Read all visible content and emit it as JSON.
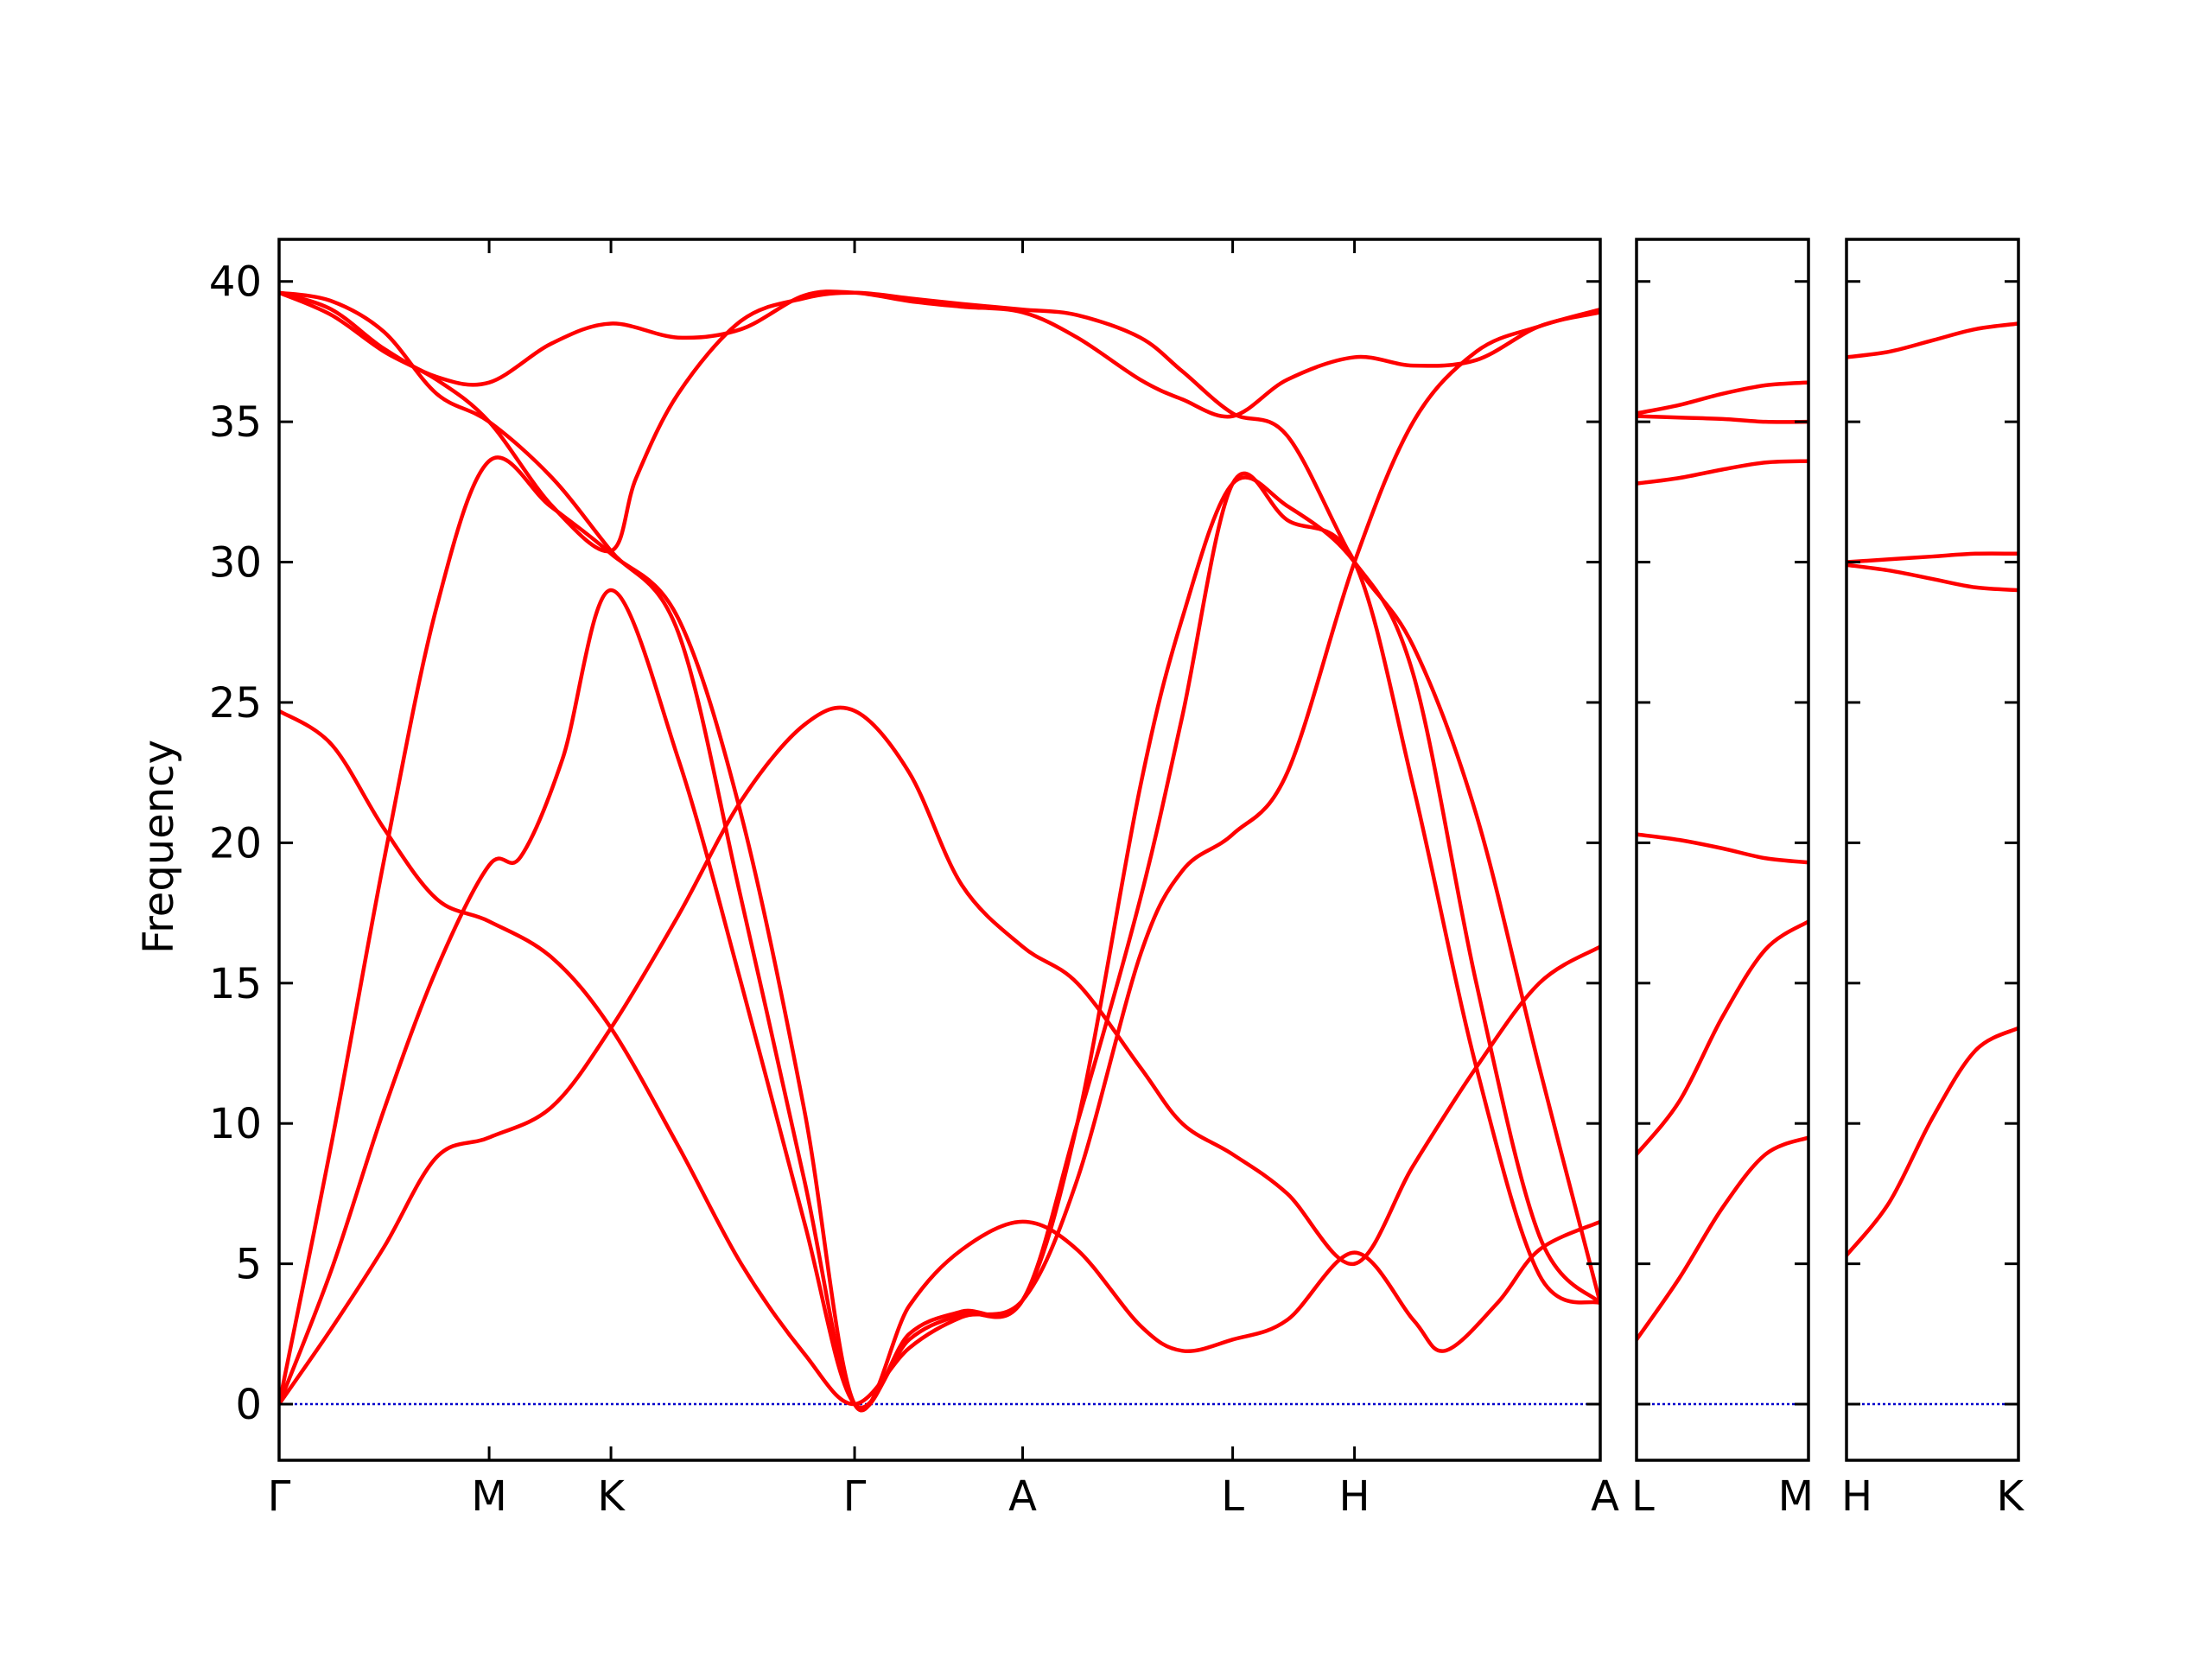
{
  "chart_data": {
    "type": "line",
    "ylabel": "Frequency",
    "ylim": [
      -2,
      41.5
    ],
    "yticks": [
      0,
      5,
      10,
      15,
      20,
      25,
      30,
      35,
      40
    ],
    "colors": {
      "band": "#ff0000",
      "zero_line": "#0000cc",
      "axes": "#000000"
    },
    "panels": [
      {
        "id": "panel-1",
        "xlim": [
          0,
          6.29
        ],
        "xticks": [
          {
            "x": 0,
            "label": "Γ"
          },
          {
            "x": 1.0,
            "label": "M"
          },
          {
            "x": 1.58,
            "label": "K"
          },
          {
            "x": 2.74,
            "label": "Γ"
          },
          {
            "x": 3.54,
            "label": "A"
          },
          {
            "x": 4.54,
            "label": "L"
          },
          {
            "x": 5.12,
            "label": "H"
          },
          {
            "x": 6.29,
            "label": "A"
          }
        ],
        "series": [
          {
            "points": [
              [
                0,
                0
              ],
              [
                0.25,
                9.3
              ],
              [
                0.5,
                19.4
              ],
              [
                0.75,
                28.4
              ],
              [
                1.0,
                33.6
              ],
              [
                1.29,
                32.0
              ],
              [
                1.58,
                30.3
              ],
              [
                1.9,
                28.0
              ],
              [
                2.2,
                21.0
              ],
              [
                2.5,
                10.5
              ],
              [
                2.74,
                0
              ],
              [
                3.0,
                3.5
              ],
              [
                3.25,
                5.5
              ],
              [
                3.54,
                6.5
              ],
              [
                3.8,
                5.5
              ],
              [
                4.1,
                2.8
              ],
              [
                4.3,
                1.9
              ],
              [
                4.54,
                2.3
              ],
              [
                4.8,
                3.0
              ],
              [
                5.12,
                5.4
              ],
              [
                5.4,
                3.0
              ],
              [
                5.55,
                1.9
              ],
              [
                5.8,
                3.6
              ],
              [
                6.0,
                5.5
              ],
              [
                6.29,
                6.5
              ]
            ]
          },
          {
            "points": [
              [
                0,
                0
              ],
              [
                0.25,
                4.8
              ],
              [
                0.5,
                10.5
              ],
              [
                0.75,
                15.5
              ],
              [
                1.0,
                19.2
              ],
              [
                1.15,
                19.5
              ],
              [
                1.35,
                23.0
              ],
              [
                1.58,
                29.0
              ],
              [
                1.9,
                23.0
              ],
              [
                2.2,
                15.0
              ],
              [
                2.5,
                6.5
              ],
              [
                2.74,
                0
              ],
              [
                3.0,
                2.3
              ],
              [
                3.25,
                3.2
              ],
              [
                3.54,
                3.7
              ],
              [
                3.8,
                10.0
              ],
              [
                4.1,
                18.0
              ],
              [
                4.3,
                24.5
              ],
              [
                4.54,
                32.8
              ],
              [
                4.8,
                31.5
              ],
              [
                5.12,
                30.0
              ],
              [
                5.4,
                22.0
              ],
              [
                5.7,
                12.0
              ],
              [
                6.0,
                4.6
              ],
              [
                6.29,
                3.6
              ]
            ]
          },
          {
            "points": [
              [
                0,
                0
              ],
              [
                0.25,
                2.7
              ],
              [
                0.5,
                5.6
              ],
              [
                0.75,
                8.8
              ],
              [
                1.0,
                9.5
              ],
              [
                1.3,
                10.6
              ],
              [
                1.58,
                13.4
              ],
              [
                1.9,
                17.4
              ],
              [
                2.2,
                21.5
              ],
              [
                2.5,
                24.2
              ],
              [
                2.74,
                24.7
              ],
              [
                3.0,
                22.5
              ],
              [
                3.25,
                18.5
              ],
              [
                3.54,
                16.3
              ],
              [
                3.8,
                15.0
              ],
              [
                4.1,
                12.0
              ],
              [
                4.3,
                10.0
              ],
              [
                4.54,
                8.9
              ],
              [
                4.8,
                7.5
              ],
              [
                5.12,
                5.0
              ],
              [
                5.4,
                8.5
              ],
              [
                5.7,
                12.0
              ],
              [
                6.0,
                15.0
              ],
              [
                6.29,
                16.3
              ]
            ]
          },
          {
            "points": [
              [
                0,
                24.7
              ],
              [
                0.25,
                23.5
              ],
              [
                0.5,
                20.5
              ],
              [
                0.75,
                18.0
              ],
              [
                1.0,
                17.2
              ],
              [
                1.3,
                15.9
              ],
              [
                1.58,
                13.4
              ],
              [
                1.9,
                9.2
              ],
              [
                2.2,
                5.0
              ],
              [
                2.5,
                1.8
              ],
              [
                2.74,
                0
              ],
              [
                3.0,
                2.0
              ],
              [
                3.25,
                3.1
              ],
              [
                3.54,
                3.7
              ],
              [
                3.8,
                8.0
              ],
              [
                4.1,
                16.0
              ],
              [
                4.3,
                19.0
              ],
              [
                4.54,
                20.3
              ],
              [
                4.8,
                22.5
              ],
              [
                5.12,
                30.0
              ],
              [
                5.4,
                35.0
              ],
              [
                5.7,
                37.5
              ],
              [
                6.0,
                38.4
              ],
              [
                6.29,
                39.0
              ]
            ]
          },
          {
            "points": [
              [
                0,
                39.6
              ],
              [
                0.25,
                39.3
              ],
              [
                0.5,
                38.2
              ],
              [
                0.75,
                36.0
              ],
              [
                1.0,
                35.0
              ],
              [
                1.3,
                33.0
              ],
              [
                1.58,
                30.4
              ],
              [
                1.9,
                27.5
              ],
              [
                2.2,
                18.0
              ],
              [
                2.5,
                8.0
              ],
              [
                2.74,
                0
              ],
              [
                3.0,
                2.5
              ],
              [
                3.25,
                3.3
              ],
              [
                3.54,
                3.7
              ],
              [
                3.8,
                10.0
              ],
              [
                4.1,
                22.0
              ],
              [
                4.3,
                28.0
              ],
              [
                4.54,
                32.8
              ],
              [
                4.8,
                32.0
              ],
              [
                5.12,
                30.0
              ],
              [
                5.4,
                26.0
              ],
              [
                5.7,
                15.0
              ],
              [
                6.0,
                6.0
              ],
              [
                6.29,
                3.6
              ]
            ]
          },
          {
            "points": [
              [
                0,
                39.6
              ],
              [
                0.25,
                39.0
              ],
              [
                0.5,
                37.6
              ],
              [
                0.75,
                36.6
              ],
              [
                1.0,
                36.4
              ],
              [
                1.3,
                37.8
              ],
              [
                1.58,
                38.5
              ],
              [
                1.9,
                38.0
              ],
              [
                2.2,
                38.3
              ],
              [
                2.5,
                39.5
              ],
              [
                2.74,
                39.6
              ],
              [
                3.0,
                39.3
              ],
              [
                3.25,
                39.1
              ],
              [
                3.54,
                38.9
              ],
              [
                3.8,
                38.0
              ],
              [
                4.1,
                36.5
              ],
              [
                4.3,
                35.8
              ],
              [
                4.54,
                35.2
              ],
              [
                4.8,
                36.5
              ],
              [
                5.12,
                37.3
              ],
              [
                5.4,
                37.0
              ],
              [
                5.7,
                37.2
              ],
              [
                6.0,
                38.4
              ],
              [
                6.29,
                38.9
              ]
            ]
          },
          {
            "points": [
              [
                0,
                39.6
              ],
              [
                0.25,
                38.8
              ],
              [
                0.5,
                37.5
              ],
              [
                0.75,
                36.5
              ],
              [
                1.0,
                35.0
              ],
              [
                1.3,
                32.0
              ],
              [
                1.58,
                30.4
              ],
              [
                1.7,
                33.0
              ],
              [
                1.9,
                36.0
              ],
              [
                2.2,
                38.6
              ],
              [
                2.5,
                39.4
              ],
              [
                2.74,
                39.6
              ],
              [
                3.0,
                39.4
              ],
              [
                3.25,
                39.2
              ],
              [
                3.54,
                39.0
              ],
              [
                3.8,
                38.8
              ],
              [
                4.1,
                38.0
              ],
              [
                4.3,
                36.8
              ],
              [
                4.54,
                35.3
              ],
              [
                4.8,
                34.5
              ],
              [
                5.12,
                30.0
              ],
              [
                5.4,
                27.0
              ],
              [
                5.7,
                21.0
              ],
              [
                6.0,
                12.0
              ],
              [
                6.29,
                3.6
              ]
            ]
          }
        ]
      },
      {
        "id": "panel-2",
        "xlim": [
          0,
          1
        ],
        "xticks": [
          {
            "x": 0,
            "label": "L"
          },
          {
            "x": 1,
            "label": "M"
          }
        ],
        "series": [
          {
            "points": [
              [
                0,
                2.3
              ],
              [
                0.25,
                4.5
              ],
              [
                0.5,
                7.0
              ],
              [
                0.75,
                8.9
              ],
              [
                1,
                9.5
              ]
            ]
          },
          {
            "points": [
              [
                0,
                8.9
              ],
              [
                0.25,
                10.8
              ],
              [
                0.5,
                13.8
              ],
              [
                0.75,
                16.2
              ],
              [
                1,
                17.2
              ]
            ]
          },
          {
            "points": [
              [
                0,
                20.3
              ],
              [
                0.25,
                20.1
              ],
              [
                0.5,
                19.8
              ],
              [
                0.75,
                19.45
              ],
              [
                1,
                19.3
              ]
            ]
          },
          {
            "points": [
              [
                0,
                32.8
              ],
              [
                0.25,
                33.0
              ],
              [
                0.5,
                33.3
              ],
              [
                0.75,
                33.55
              ],
              [
                1,
                33.6
              ]
            ]
          },
          {
            "points": [
              [
                0,
                35.2
              ],
              [
                0.25,
                35.15
              ],
              [
                0.5,
                35.1
              ],
              [
                0.75,
                35.0
              ],
              [
                1,
                35.0
              ]
            ]
          },
          {
            "points": [
              [
                0,
                35.3
              ],
              [
                0.25,
                35.6
              ],
              [
                0.5,
                36.0
              ],
              [
                0.75,
                36.3
              ],
              [
                1,
                36.4
              ]
            ]
          }
        ]
      },
      {
        "id": "panel-3",
        "xlim": [
          0,
          1
        ],
        "xticks": [
          {
            "x": 0,
            "label": "H"
          },
          {
            "x": 1,
            "label": "K"
          }
        ],
        "series": [
          {
            "points": [
              [
                0,
                5.3
              ],
              [
                0.25,
                7.2
              ],
              [
                0.5,
                10.2
              ],
              [
                0.75,
                12.6
              ],
              [
                1,
                13.4
              ]
            ]
          },
          {
            "points": [
              [
                0,
                29.9
              ],
              [
                0.25,
                29.7
              ],
              [
                0.5,
                29.4
              ],
              [
                0.75,
                29.1
              ],
              [
                1,
                29.0
              ]
            ]
          },
          {
            "points": [
              [
                0,
                30.0
              ],
              [
                0.25,
                30.1
              ],
              [
                0.5,
                30.2
              ],
              [
                0.75,
                30.3
              ],
              [
                1,
                30.3
              ]
            ]
          },
          {
            "points": [
              [
                0,
                37.3
              ],
              [
                0.25,
                37.5
              ],
              [
                0.5,
                37.9
              ],
              [
                0.75,
                38.3
              ],
              [
                1,
                38.5
              ]
            ]
          }
        ]
      }
    ]
  }
}
